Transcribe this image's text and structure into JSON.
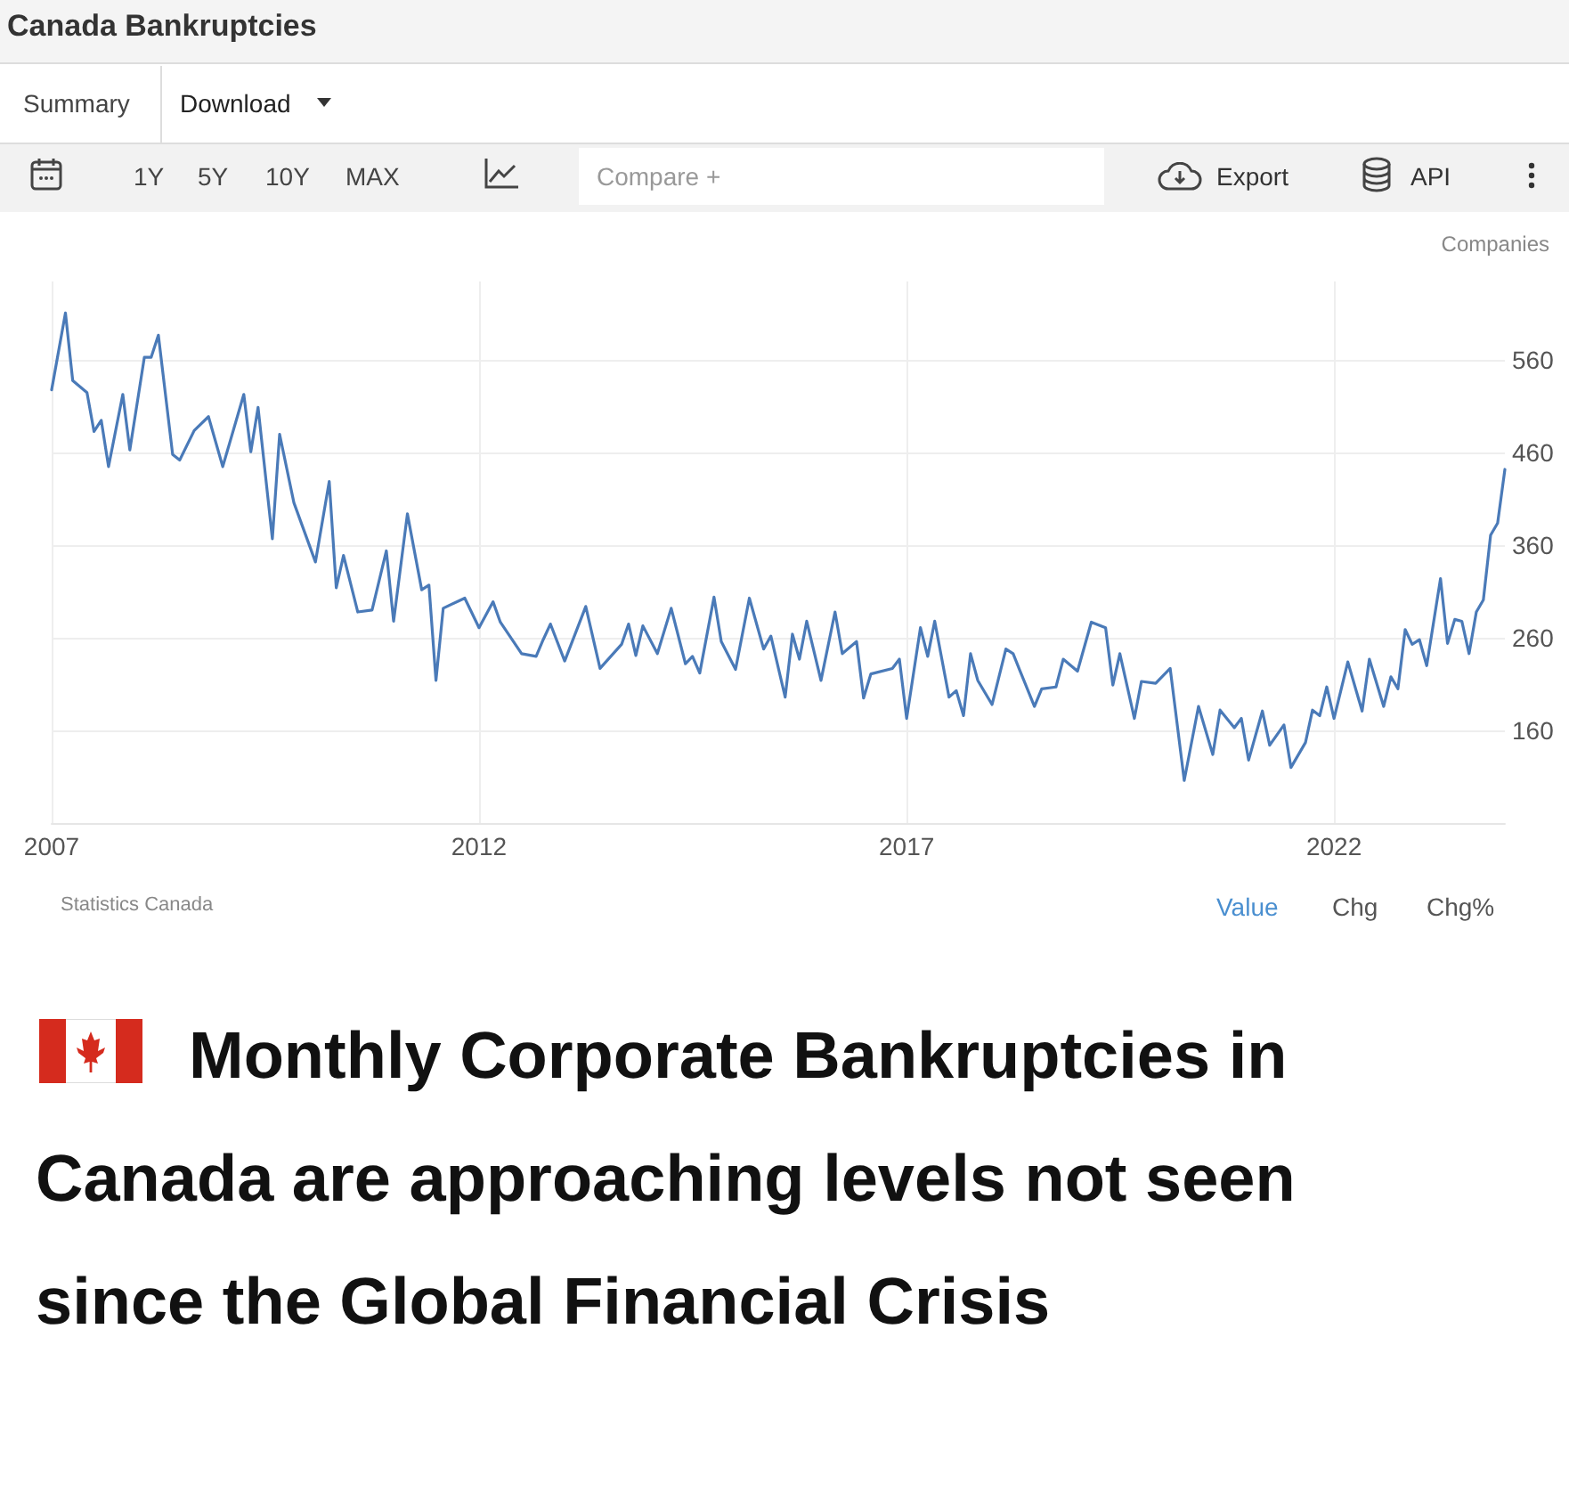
{
  "chart_data": {
    "type": "line",
    "title": "Canada Bankruptcies",
    "subtitle": "Monthly Corporate Bankruptcies in Canada are approaching levels not seen since the Global Financial Crisis",
    "ylabel": "Companies",
    "annotations": [
      "Summary",
      "Download",
      "1Y",
      "5Y",
      "10Y",
      "MAX",
      "Compare +",
      "Export",
      "API",
      "Statistics Canada",
      "Value",
      "Chg",
      "Chg%"
    ],
    "x": [
      "2007-01",
      "2007-03",
      "2007-04",
      "2007-06",
      "2007-07",
      "2007-08",
      "2007-09",
      "2007-11",
      "2007-12",
      "2008-02",
      "2008-03",
      "2008-04",
      "2008-06",
      "2008-07",
      "2008-09",
      "2008-11",
      "2009-01",
      "2009-04",
      "2009-05",
      "2009-06",
      "2009-08",
      "2009-09",
      "2009-11",
      "2010-02",
      "2010-04",
      "2010-05",
      "2010-06",
      "2010-08",
      "2010-10",
      "2010-12",
      "2011-01",
      "2011-03",
      "2011-05",
      "2011-06",
      "2011-07",
      "2011-08",
      "2011-11",
      "2012-01",
      "2012-03",
      "2012-04",
      "2012-07",
      "2012-09",
      "2012-10",
      "2012-11",
      "2013-01",
      "2013-04",
      "2013-06",
      "2013-09",
      "2013-10",
      "2013-11",
      "2013-12",
      "2014-02",
      "2014-04",
      "2014-06",
      "2014-07",
      "2014-08",
      "2014-10",
      "2014-11",
      "2015-01",
      "2015-03",
      "2015-05",
      "2015-06",
      "2015-08",
      "2015-09",
      "2015-10",
      "2015-11",
      "2016-01",
      "2016-03",
      "2016-04",
      "2016-06",
      "2016-07",
      "2016-08",
      "2016-11",
      "2016-12",
      "2017-01",
      "2017-03",
      "2017-04",
      "2017-05",
      "2017-07",
      "2017-08",
      "2017-09",
      "2017-10",
      "2017-11",
      "2018-01",
      "2018-03",
      "2018-04",
      "2018-05",
      "2018-07",
      "2018-08",
      "2018-10",
      "2018-11",
      "2019-01",
      "2019-03",
      "2019-05",
      "2019-06",
      "2019-07",
      "2019-09",
      "2019-10",
      "2019-12",
      "2020-02",
      "2020-04",
      "2020-06",
      "2020-08",
      "2020-09",
      "2020-11",
      "2020-12",
      "2021-01",
      "2021-03",
      "2021-04",
      "2021-06",
      "2021-07",
      "2021-09",
      "2021-10",
      "2021-11",
      "2021-12",
      "2022-01",
      "2022-03",
      "2022-05",
      "2022-06",
      "2022-08",
      "2022-09",
      "2022-10",
      "2022-11",
      "2022-12",
      "2023-01",
      "2023-02",
      "2023-04",
      "2023-05",
      "2023-06",
      "2023-07",
      "2023-08",
      "2023-09",
      "2023-10",
      "2023-11",
      "2023-12",
      "2024-01"
    ],
    "series": [
      {
        "color": "#4a7ab8",
        "values": [
          528,
          611,
          538,
          525,
          483,
          495,
          445,
          523,
          463,
          563,
          563,
          587,
          458,
          452,
          484,
          499,
          445,
          523,
          461,
          509,
          367,
          480,
          406,
          342,
          429,
          314,
          349,
          288,
          290,
          354,
          278,
          394,
          312,
          317,
          214,
          292,
          303,
          271,
          299,
          277,
          243,
          240,
          258,
          275,
          235,
          294,
          227,
          253,
          275,
          241,
          273,
          243,
          292,
          232,
          240,
          222,
          304,
          256,
          226,
          303,
          248,
          262,
          196,
          264,
          237,
          278,
          214,
          288,
          243,
          256,
          195,
          221,
          227,
          237,
          173,
          271,
          240,
          278,
          196,
          203,
          176,
          243,
          214,
          188,
          248,
          243,
          224,
          186,
          205,
          207,
          237,
          224,
          277,
          271,
          209,
          243,
          173,
          213,
          211,
          227,
          106,
          186,
          134,
          182,
          163,
          173,
          128,
          181,
          144,
          166,
          120,
          147,
          182,
          176,
          207,
          173,
          234,
          181,
          237,
          186,
          218,
          205,
          269,
          253,
          258,
          230,
          324,
          254,
          280,
          278,
          243,
          288,
          301,
          371,
          384,
          442
        ]
      }
    ],
    "xlim": [
      "2007-01",
      "2024-01"
    ],
    "xticks": [
      "2007",
      "2012",
      "2017",
      "2022"
    ],
    "ylim": [
      60,
      645
    ],
    "yticks": [
      160,
      260,
      360,
      460,
      560
    ],
    "grid": true,
    "marker": "none",
    "line_style": "solid"
  }
}
